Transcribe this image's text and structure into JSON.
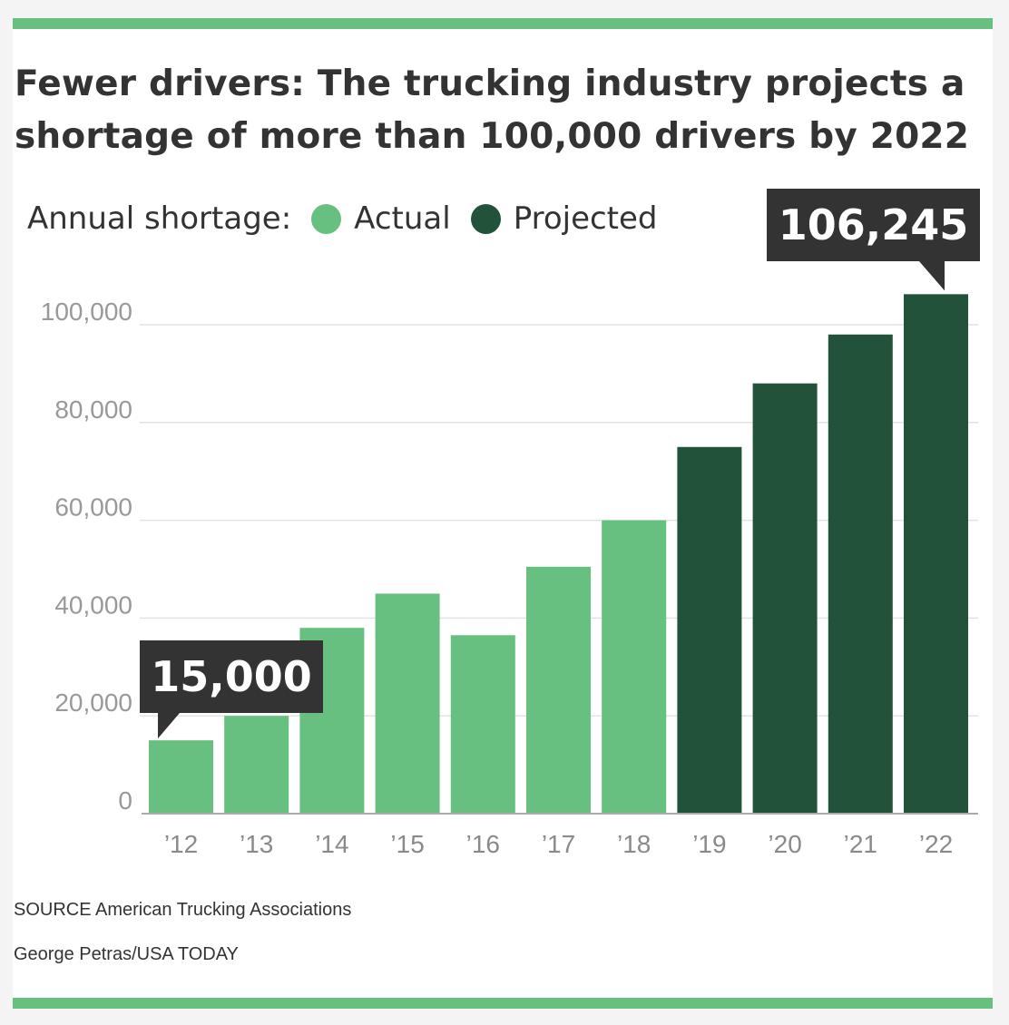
{
  "header": {
    "title": "Fewer drivers: The trucking industry projects a shortage of more than 100,000 drivers by 2022"
  },
  "legend": {
    "label": "Annual shortage:",
    "items": [
      {
        "label": "Actual",
        "color": "#67c080"
      },
      {
        "label": "Projected",
        "color": "#22523a"
      }
    ]
  },
  "chart_data": {
    "type": "bar",
    "categories": [
      "’12",
      "’13",
      "’14",
      "’15",
      "’16",
      "’17",
      "’18",
      "’19",
      "’20",
      "’21",
      "’22"
    ],
    "series": [
      {
        "name": "Actual",
        "values": [
          15000,
          20000,
          38000,
          45000,
          36500,
          50500,
          60000,
          null,
          null,
          null,
          null
        ],
        "color": "#67c080"
      },
      {
        "name": "Projected",
        "values": [
          null,
          null,
          null,
          null,
          null,
          null,
          null,
          75000,
          88000,
          98000,
          106245
        ],
        "color": "#22523a"
      }
    ],
    "title": "Fewer drivers: The trucking industry projects a shortage of more than 100,000 drivers by 2022",
    "xlabel": "",
    "ylabel": "",
    "ylim": [
      0,
      100000
    ],
    "yticks": [
      0,
      20000,
      40000,
      60000,
      80000,
      100000
    ],
    "ytick_labels": [
      "0",
      "20,000",
      "40,000",
      "60,000",
      "80,000",
      "100,000"
    ],
    "grid": true,
    "legend_position": "top-left",
    "annotations": [
      {
        "category": "’12",
        "value": 15000,
        "text": "15,000"
      },
      {
        "category": "’22",
        "value": 106245,
        "text": "106,245"
      }
    ]
  },
  "footer": {
    "source": "SOURCE American Trucking Associations",
    "credit": "George Petras/USA TODAY"
  }
}
